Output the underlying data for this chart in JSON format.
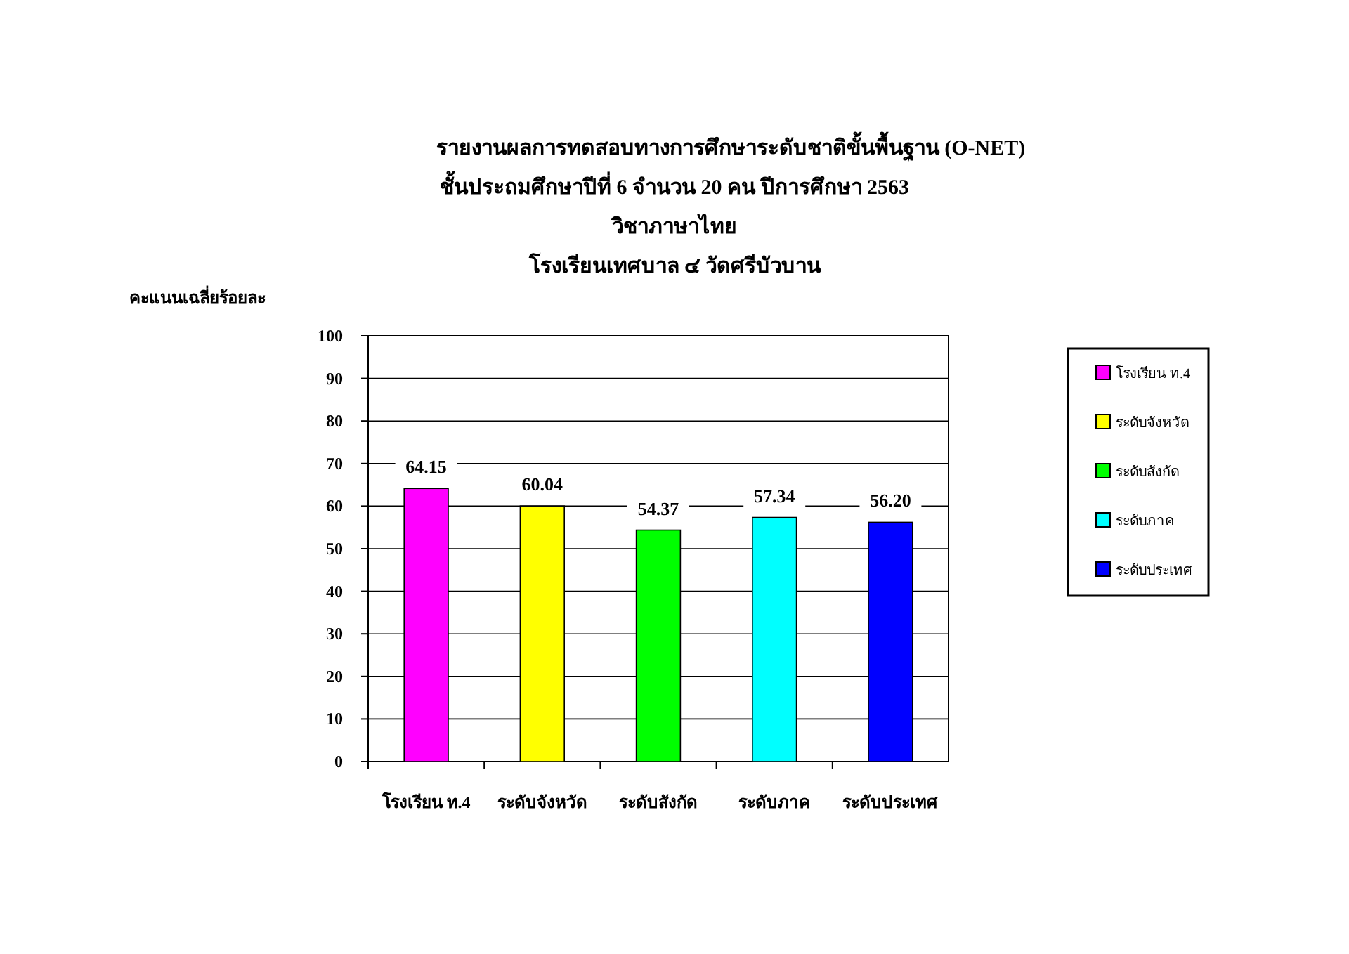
{
  "chart_data": {
    "type": "bar",
    "title": "รายงานผลการทดสอบทางการศึกษาระดับชาติขั้นพื้นฐาน (O-NET)",
    "subtitle": "ชั้นประถมศึกษาปีที่ 6 จำนวน  20  คน ปีการศึกษา  2563\nวิชาภาษาไทย\nโรงเรียนเทศบาล ๔ วัดศรีบัวบาน",
    "ylabel": "คะแนนเฉลี่ยร้อยละ",
    "categories": [
      "โรงเรียน ท.4",
      "ระดับจังหวัด",
      "ระดับสังกัด",
      "ระดับภาค",
      "ระดับประเทศ"
    ],
    "series": [
      {
        "name": "โรงเรียน ท.4",
        "color": "#ff00ff",
        "values": [
          64.15,
          null,
          null,
          null,
          null
        ],
        "value_labels": [
          "64.15",
          null,
          null,
          null,
          null
        ]
      },
      {
        "name": "ระดับจังหวัด",
        "color": "#ffff00",
        "values": [
          null,
          60.04,
          null,
          null,
          null
        ],
        "value_labels": [
          null,
          "60.04",
          null,
          null,
          null
        ]
      },
      {
        "name": "ระดับสังกัด",
        "color": "#00ff00",
        "values": [
          null,
          null,
          54.37,
          null,
          null
        ],
        "value_labels": [
          null,
          null,
          "54.37",
          null,
          null
        ]
      },
      {
        "name": "ระดับภาค",
        "color": "#00ffff",
        "values": [
          null,
          null,
          null,
          57.34,
          null
        ],
        "value_labels": [
          null,
          null,
          null,
          "57.34",
          null
        ]
      },
      {
        "name": "ระดับประเทศ",
        "color": "#0000ff",
        "values": [
          null,
          null,
          null,
          null,
          56.2
        ],
        "value_labels": [
          null,
          null,
          null,
          null,
          "56.20"
        ]
      }
    ],
    "ylim": [
      0,
      100
    ],
    "yticks": [
      0,
      10,
      20,
      30,
      40,
      50,
      60,
      70,
      80,
      90,
      100
    ],
    "grid": "y",
    "legend": "right"
  }
}
